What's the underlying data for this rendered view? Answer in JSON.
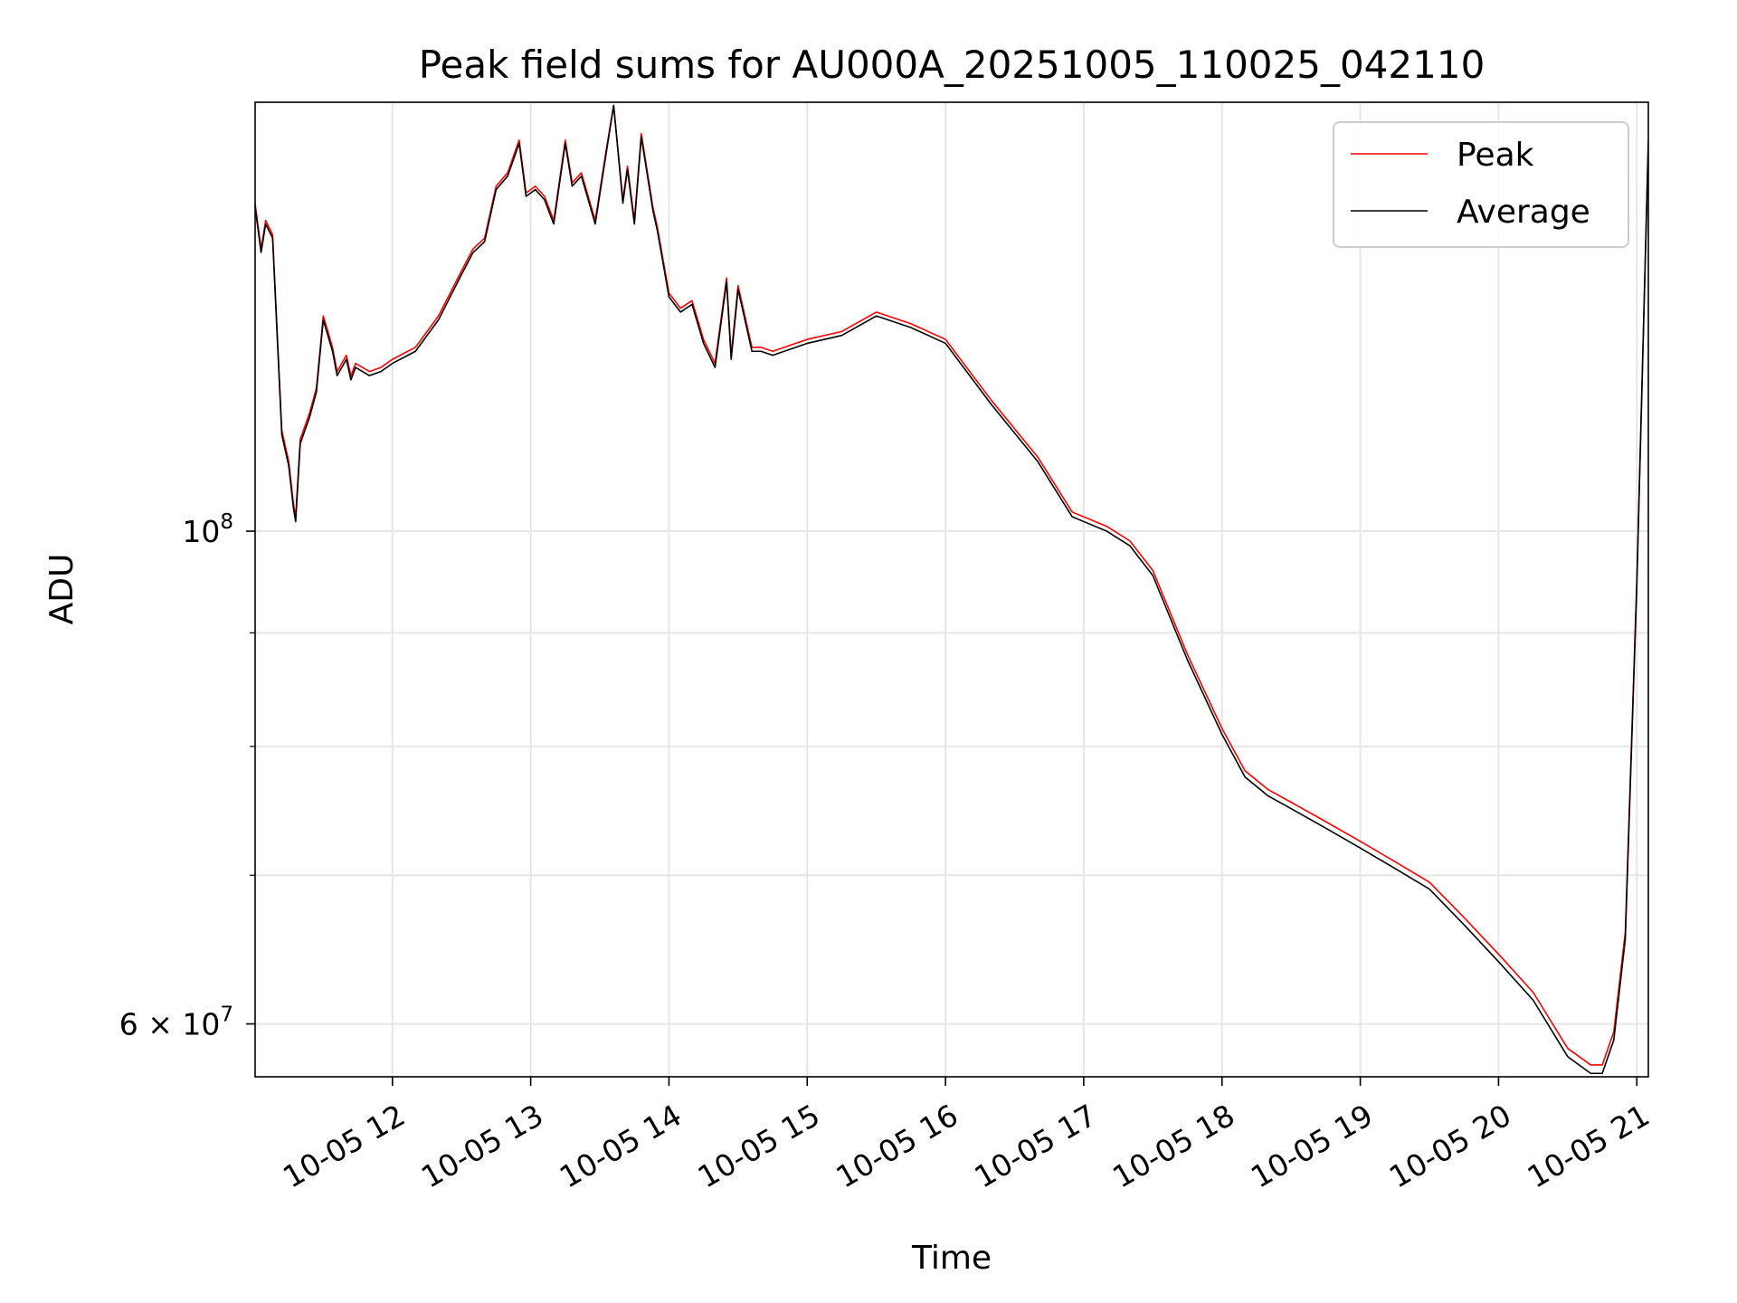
{
  "chart_data": {
    "type": "line",
    "title": "Peak field sums for AU000A_20251005_110025_042110",
    "xlabel": "Time",
    "ylabel": "ADU",
    "yscale": "log",
    "grid": true,
    "legend_position": "top-right",
    "xlim": [
      "2025-10-05 11:00:25",
      "2025-10-05 21:05"
    ],
    "ylim": [
      56800000,
      156000000
    ],
    "x_tick_labels": [
      "10-05 12",
      "10-05 13",
      "10-05 14",
      "10-05 15",
      "10-05 16",
      "10-05 17",
      "10-05 18",
      "10-05 19",
      "10-05 20",
      "10-05 21"
    ],
    "x_tick_values": [
      "2025-10-05 12:00",
      "2025-10-05 13:00",
      "2025-10-05 14:00",
      "2025-10-05 15:00",
      "2025-10-05 16:00",
      "2025-10-05 17:00",
      "2025-10-05 18:00",
      "2025-10-05 19:00",
      "2025-10-05 20:00",
      "2025-10-05 21:00"
    ],
    "y_ticks": [
      {
        "value": 100000000,
        "label_base": "10",
        "label_exp": "8"
      },
      {
        "value": 60000000,
        "label_base": "6 × 10",
        "label_exp": "7"
      }
    ],
    "y_minor_ticks": [
      70000000,
      80000000,
      90000000
    ],
    "series": [
      {
        "name": "Peak",
        "color": "#ff0000",
        "x": [
          "2025-10-05 11:00",
          "2025-10-05 11:03",
          "2025-10-05 11:05",
          "2025-10-05 11:08",
          "2025-10-05 11:12",
          "2025-10-05 11:15",
          "2025-10-05 11:17",
          "2025-10-05 11:18",
          "2025-10-05 11:20",
          "2025-10-05 11:24",
          "2025-10-05 11:27",
          "2025-10-05 11:30",
          "2025-10-05 11:34",
          "2025-10-05 11:36",
          "2025-10-05 11:40",
          "2025-10-05 11:42",
          "2025-10-05 11:44",
          "2025-10-05 11:47",
          "2025-10-05 11:50",
          "2025-10-05 11:55",
          "2025-10-05 12:00",
          "2025-10-05 12:10",
          "2025-10-05 12:20",
          "2025-10-05 12:30",
          "2025-10-05 12:35",
          "2025-10-05 12:40",
          "2025-10-05 12:45",
          "2025-10-05 12:50",
          "2025-10-05 12:55",
          "2025-10-05 12:58",
          "2025-10-05 13:02",
          "2025-10-05 13:06",
          "2025-10-05 13:10",
          "2025-10-05 13:15",
          "2025-10-05 13:18",
          "2025-10-05 13:22",
          "2025-10-05 13:28",
          "2025-10-05 13:33",
          "2025-10-05 13:36",
          "2025-10-05 13:40",
          "2025-10-05 13:42",
          "2025-10-05 13:45",
          "2025-10-05 13:48",
          "2025-10-05 13:53",
          "2025-10-05 13:55",
          "2025-10-05 14:00",
          "2025-10-05 14:05",
          "2025-10-05 14:10",
          "2025-10-05 14:15",
          "2025-10-05 14:20",
          "2025-10-05 14:25",
          "2025-10-05 14:27",
          "2025-10-05 14:30",
          "2025-10-05 14:36",
          "2025-10-05 14:40",
          "2025-10-05 14:45",
          "2025-10-05 15:00",
          "2025-10-05 15:15",
          "2025-10-05 15:30",
          "2025-10-05 15:45",
          "2025-10-05 16:00",
          "2025-10-05 16:20",
          "2025-10-05 16:40",
          "2025-10-05 16:55",
          "2025-10-05 17:00",
          "2025-10-05 17:10",
          "2025-10-05 17:20",
          "2025-10-05 17:30",
          "2025-10-05 17:45",
          "2025-10-05 18:00",
          "2025-10-05 18:10",
          "2025-10-05 18:20",
          "2025-10-05 18:30",
          "2025-10-05 18:45",
          "2025-10-05 19:00",
          "2025-10-05 19:15",
          "2025-10-05 19:30",
          "2025-10-05 19:45",
          "2025-10-05 20:00",
          "2025-10-05 20:15",
          "2025-10-05 20:30",
          "2025-10-05 20:40",
          "2025-10-05 20:45",
          "2025-10-05 20:50",
          "2025-10-05 20:55",
          "2025-10-05 21:00",
          "2025-10-05 21:03",
          "2025-10-05 21:05"
        ],
        "y": [
          141500000,
          134000000,
          138000000,
          136000000,
          111000000,
          107500000,
          103000000,
          101500000,
          110000000,
          113000000,
          116000000,
          125000000,
          121000000,
          118000000,
          120000000,
          117500000,
          119000000,
          118500000,
          118000000,
          118500000,
          119500000,
          121000000,
          125000000,
          131000000,
          134000000,
          135500000,
          143000000,
          145000000,
          150000000,
          142000000,
          143000000,
          141500000,
          138000000,
          150000000,
          143500000,
          145000000,
          138000000,
          149000000,
          155500000,
          141000000,
          146000000,
          138000000,
          151000000,
          140000000,
          137000000,
          128000000,
          126000000,
          127000000,
          122000000,
          119000000,
          130000000,
          120000000,
          129000000,
          121000000,
          121000000,
          120500000,
          122000000,
          123000000,
          125500000,
          124000000,
          122000000,
          114500000,
          108000000,
          102000000,
          101500000,
          100500000,
          99000000,
          96000000,
          88000000,
          81500000,
          78000000,
          76500000,
          75500000,
          74000000,
          72500000,
          71000000,
          69500000,
          67000000,
          64500000,
          62000000,
          58500000,
          57500000,
          57500000,
          59500000,
          66000000,
          95000000,
          125000000,
          150000000
        ]
      },
      {
        "name": "Average",
        "color": "#000000",
        "x": [
          "2025-10-05 11:00",
          "2025-10-05 11:03",
          "2025-10-05 11:05",
          "2025-10-05 11:08",
          "2025-10-05 11:12",
          "2025-10-05 11:15",
          "2025-10-05 11:17",
          "2025-10-05 11:18",
          "2025-10-05 11:20",
          "2025-10-05 11:24",
          "2025-10-05 11:27",
          "2025-10-05 11:30",
          "2025-10-05 11:34",
          "2025-10-05 11:36",
          "2025-10-05 11:40",
          "2025-10-05 11:42",
          "2025-10-05 11:44",
          "2025-10-05 11:47",
          "2025-10-05 11:50",
          "2025-10-05 11:55",
          "2025-10-05 12:00",
          "2025-10-05 12:10",
          "2025-10-05 12:20",
          "2025-10-05 12:30",
          "2025-10-05 12:35",
          "2025-10-05 12:40",
          "2025-10-05 12:45",
          "2025-10-05 12:50",
          "2025-10-05 12:55",
          "2025-10-05 12:58",
          "2025-10-05 13:02",
          "2025-10-05 13:06",
          "2025-10-05 13:10",
          "2025-10-05 13:15",
          "2025-10-05 13:18",
          "2025-10-05 13:22",
          "2025-10-05 13:28",
          "2025-10-05 13:33",
          "2025-10-05 13:36",
          "2025-10-05 13:40",
          "2025-10-05 13:42",
          "2025-10-05 13:45",
          "2025-10-05 13:48",
          "2025-10-05 13:53",
          "2025-10-05 13:55",
          "2025-10-05 14:00",
          "2025-10-05 14:05",
          "2025-10-05 14:10",
          "2025-10-05 14:15",
          "2025-10-05 14:20",
          "2025-10-05 14:25",
          "2025-10-05 14:27",
          "2025-10-05 14:30",
          "2025-10-05 14:36",
          "2025-10-05 14:40",
          "2025-10-05 14:45",
          "2025-10-05 15:00",
          "2025-10-05 15:15",
          "2025-10-05 15:30",
          "2025-10-05 15:45",
          "2025-10-05 16:00",
          "2025-10-05 16:20",
          "2025-10-05 16:40",
          "2025-10-05 16:55",
          "2025-10-05 17:00",
          "2025-10-05 17:10",
          "2025-10-05 17:20",
          "2025-10-05 17:30",
          "2025-10-05 17:45",
          "2025-10-05 18:00",
          "2025-10-05 18:10",
          "2025-10-05 18:20",
          "2025-10-05 18:30",
          "2025-10-05 18:45",
          "2025-10-05 19:00",
          "2025-10-05 19:15",
          "2025-10-05 19:30",
          "2025-10-05 19:45",
          "2025-10-05 20:00",
          "2025-10-05 20:15",
          "2025-10-05 20:30",
          "2025-10-05 20:40",
          "2025-10-05 20:45",
          "2025-10-05 20:50",
          "2025-10-05 20:55",
          "2025-10-05 21:00",
          "2025-10-05 21:03",
          "2025-10-05 21:05"
        ],
        "y": [
          141000000,
          133500000,
          137500000,
          135500000,
          110500000,
          107000000,
          102500000,
          101000000,
          109500000,
          112500000,
          115500000,
          124500000,
          120500000,
          117500000,
          119500000,
          117000000,
          118500000,
          118000000,
          117500000,
          118000000,
          119000000,
          120500000,
          124500000,
          130500000,
          133500000,
          135000000,
          142500000,
          144500000,
          149500000,
          141500000,
          142500000,
          141000000,
          137500000,
          149500000,
          143000000,
          144500000,
          137500000,
          148500000,
          155500000,
          140500000,
          145500000,
          137500000,
          150500000,
          139500000,
          136500000,
          127500000,
          125500000,
          126500000,
          121500000,
          118500000,
          129500000,
          119500000,
          128500000,
          120500000,
          120500000,
          120000000,
          121500000,
          122500000,
          125000000,
          123500000,
          121500000,
          114000000,
          107500000,
          101500000,
          101000000,
          100000000,
          98500000,
          95500000,
          87500000,
          81000000,
          77500000,
          76000000,
          75000000,
          73500000,
          72000000,
          70500000,
          69000000,
          66500000,
          64000000,
          61500000,
          58000000,
          57000000,
          57000000,
          59000000,
          65500000,
          94500000,
          124500000,
          149500000
        ]
      }
    ]
  }
}
